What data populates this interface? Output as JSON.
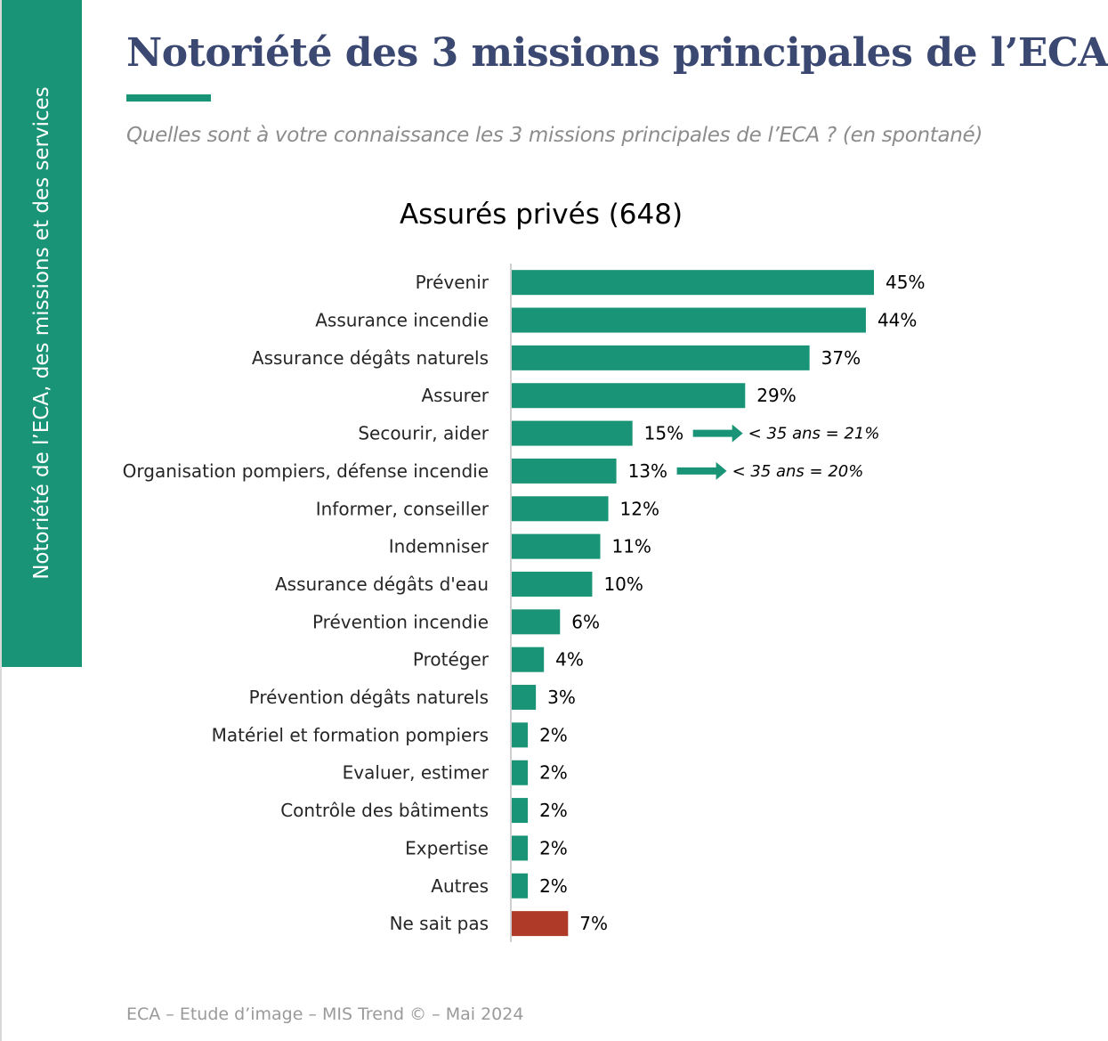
{
  "slide": {
    "title": "Notoriété des 3 missions principales de l’ECA",
    "subtitle": "Quelles sont à votre connaissance les 3 missions principales de l’ECA ? (en spontané)",
    "side_label": "Notoriété de l’ECA, des missions et des services",
    "footer": "ECA – Etude d’image – MIS Trend © – Mai 2024"
  },
  "colors": {
    "accent": "#1a9477",
    "title": "#3b4872",
    "highlight": "#b03a28"
  },
  "chart_data": {
    "type": "bar",
    "orientation": "horizontal",
    "title": "Assurés privés (648)",
    "categories": [
      "Prévenir",
      "Assurance incendie",
      "Assurance dégâts naturels",
      "Assurer",
      "Secourir, aider",
      "Organisation pompiers, défense incendie",
      "Informer, conseiller",
      "Indemniser",
      "Assurance dégâts d'eau",
      "Prévention incendie",
      "Protéger",
      "Prévention dégâts naturels",
      "Matériel et formation pompiers",
      "Evaluer, estimer",
      "Contrôle des bâtiments",
      "Expertise",
      "Autres",
      "Ne sait pas"
    ],
    "values": [
      45,
      44,
      37,
      29,
      15,
      13,
      12,
      11,
      10,
      6,
      4,
      3,
      2,
      2,
      2,
      2,
      2,
      7
    ],
    "value_labels": [
      "45%",
      "44%",
      "37%",
      "29%",
      "15%",
      "13%",
      "12%",
      "11%",
      "10%",
      "6%",
      "4%",
      "3%",
      "2%",
      "2%",
      "2%",
      "2%",
      "2%",
      "7%"
    ],
    "highlighted_categories": [
      "Ne sait pas"
    ],
    "xlim": [
      0,
      45
    ],
    "annotations": [
      {
        "category": "Secourir, aider",
        "text": "< 35 ans = 21%"
      },
      {
        "category": "Organisation pompiers, défense incendie",
        "text": "< 35 ans = 20%"
      }
    ]
  }
}
